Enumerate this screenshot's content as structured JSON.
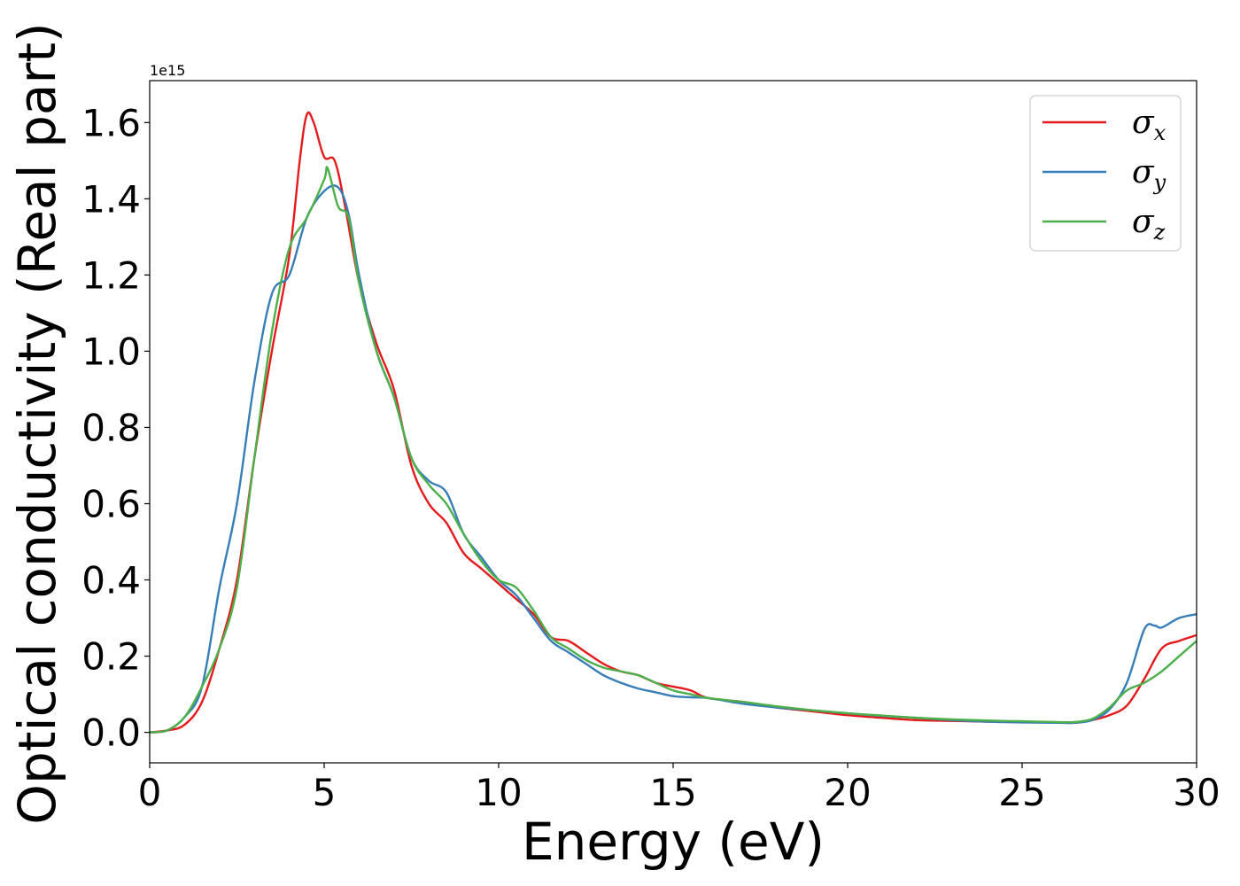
{
  "chart_data": {
    "type": "line",
    "xlabel": "Energy (eV)",
    "ylabel": "Optical conductivity (Real part)",
    "y_offset_label": "1e15",
    "xlim": [
      0,
      30
    ],
    "ylim": [
      -0.08,
      1.71
    ],
    "xticks": [
      0,
      5,
      10,
      15,
      20,
      25,
      30
    ],
    "xtick_labels": [
      "0",
      "5",
      "10",
      "15",
      "20",
      "25",
      "30"
    ],
    "yticks": [
      0.0,
      0.2,
      0.4,
      0.6,
      0.8,
      1.0,
      1.2,
      1.4,
      1.6
    ],
    "ytick_labels": [
      "0.0",
      "0.2",
      "0.4",
      "0.6",
      "0.8",
      "1.0",
      "1.2",
      "1.4",
      "1.6"
    ],
    "grid": false,
    "legend_position": "top-right",
    "series": [
      {
        "name": "σ",
        "subscript": "x",
        "color": "#e41a1c",
        "x": [
          0,
          0.5,
          1.0,
          1.5,
          2.0,
          2.5,
          3.0,
          3.5,
          4.0,
          4.3,
          4.5,
          4.7,
          5.0,
          5.3,
          5.6,
          6.0,
          6.5,
          7.0,
          7.5,
          8.0,
          8.5,
          9.0,
          9.5,
          10.0,
          10.5,
          11.0,
          11.5,
          12.0,
          12.5,
          13.0,
          13.5,
          14.0,
          14.5,
          15.0,
          15.5,
          16.0,
          17.0,
          18.0,
          19.0,
          20.0,
          21.0,
          22.0,
          23.0,
          24.0,
          25.0,
          26.0,
          26.5,
          27.0,
          27.5,
          28.0,
          28.5,
          29.0,
          29.5,
          30.0
        ],
        "y": [
          0.0,
          0.005,
          0.02,
          0.08,
          0.22,
          0.4,
          0.72,
          1.0,
          1.25,
          1.5,
          1.62,
          1.6,
          1.51,
          1.5,
          1.38,
          1.18,
          1.02,
          0.9,
          0.7,
          0.6,
          0.55,
          0.47,
          0.43,
          0.39,
          0.35,
          0.31,
          0.25,
          0.24,
          0.21,
          0.18,
          0.16,
          0.15,
          0.13,
          0.12,
          0.11,
          0.09,
          0.08,
          0.065,
          0.055,
          0.045,
          0.038,
          0.032,
          0.03,
          0.028,
          0.027,
          0.026,
          0.025,
          0.032,
          0.045,
          0.07,
          0.14,
          0.22,
          0.24,
          0.255
        ]
      },
      {
        "name": "σ",
        "subscript": "y",
        "color": "#377eb8",
        "x": [
          0,
          0.5,
          1.0,
          1.5,
          2.0,
          2.5,
          3.0,
          3.5,
          4.0,
          4.5,
          5.0,
          5.4,
          5.7,
          6.0,
          6.5,
          7.0,
          7.5,
          8.0,
          8.5,
          9.0,
          9.5,
          10.0,
          10.5,
          11.0,
          11.5,
          12.0,
          12.5,
          13.0,
          13.5,
          14.0,
          14.5,
          15.0,
          15.5,
          16.0,
          17.0,
          18.0,
          19.0,
          20.0,
          21.0,
          22.0,
          23.0,
          24.0,
          25.0,
          26.0,
          26.5,
          27.0,
          27.5,
          28.0,
          28.5,
          28.8,
          29.0,
          29.5,
          30.0
        ],
        "y": [
          0.0,
          0.005,
          0.04,
          0.12,
          0.38,
          0.6,
          0.92,
          1.15,
          1.2,
          1.35,
          1.42,
          1.43,
          1.36,
          1.2,
          1.0,
          0.88,
          0.72,
          0.66,
          0.63,
          0.52,
          0.46,
          0.4,
          0.36,
          0.3,
          0.24,
          0.21,
          0.18,
          0.15,
          0.13,
          0.115,
          0.105,
          0.095,
          0.092,
          0.09,
          0.075,
          0.065,
          0.058,
          0.05,
          0.043,
          0.038,
          0.032,
          0.028,
          0.026,
          0.025,
          0.025,
          0.032,
          0.06,
          0.13,
          0.27,
          0.28,
          0.275,
          0.3,
          0.31
        ]
      },
      {
        "name": "σ",
        "subscript": "z",
        "color": "#4daf4a",
        "x": [
          0,
          0.5,
          1.0,
          1.5,
          2.0,
          2.5,
          3.0,
          3.5,
          4.0,
          4.5,
          5.0,
          5.1,
          5.4,
          5.7,
          6.0,
          6.5,
          7.0,
          7.5,
          8.0,
          8.5,
          9.0,
          9.5,
          10.0,
          10.5,
          11.0,
          11.5,
          12.0,
          12.5,
          13.0,
          13.5,
          14.0,
          14.5,
          15.0,
          15.5,
          16.0,
          17.0,
          18.0,
          19.0,
          20.0,
          21.0,
          22.0,
          23.0,
          24.0,
          25.0,
          26.0,
          26.5,
          27.0,
          27.5,
          28.0,
          28.5,
          29.0,
          29.5,
          30.0
        ],
        "y": [
          0.0,
          0.005,
          0.04,
          0.12,
          0.22,
          0.38,
          0.72,
          1.05,
          1.27,
          1.35,
          1.45,
          1.48,
          1.38,
          1.35,
          1.18,
          1.0,
          0.88,
          0.72,
          0.65,
          0.6,
          0.52,
          0.45,
          0.4,
          0.38,
          0.32,
          0.25,
          0.22,
          0.19,
          0.17,
          0.16,
          0.15,
          0.13,
          0.11,
          0.1,
          0.09,
          0.08,
          0.068,
          0.058,
          0.05,
          0.044,
          0.038,
          0.034,
          0.031,
          0.029,
          0.027,
          0.027,
          0.035,
          0.065,
          0.11,
          0.13,
          0.16,
          0.2,
          0.24
        ]
      }
    ]
  }
}
